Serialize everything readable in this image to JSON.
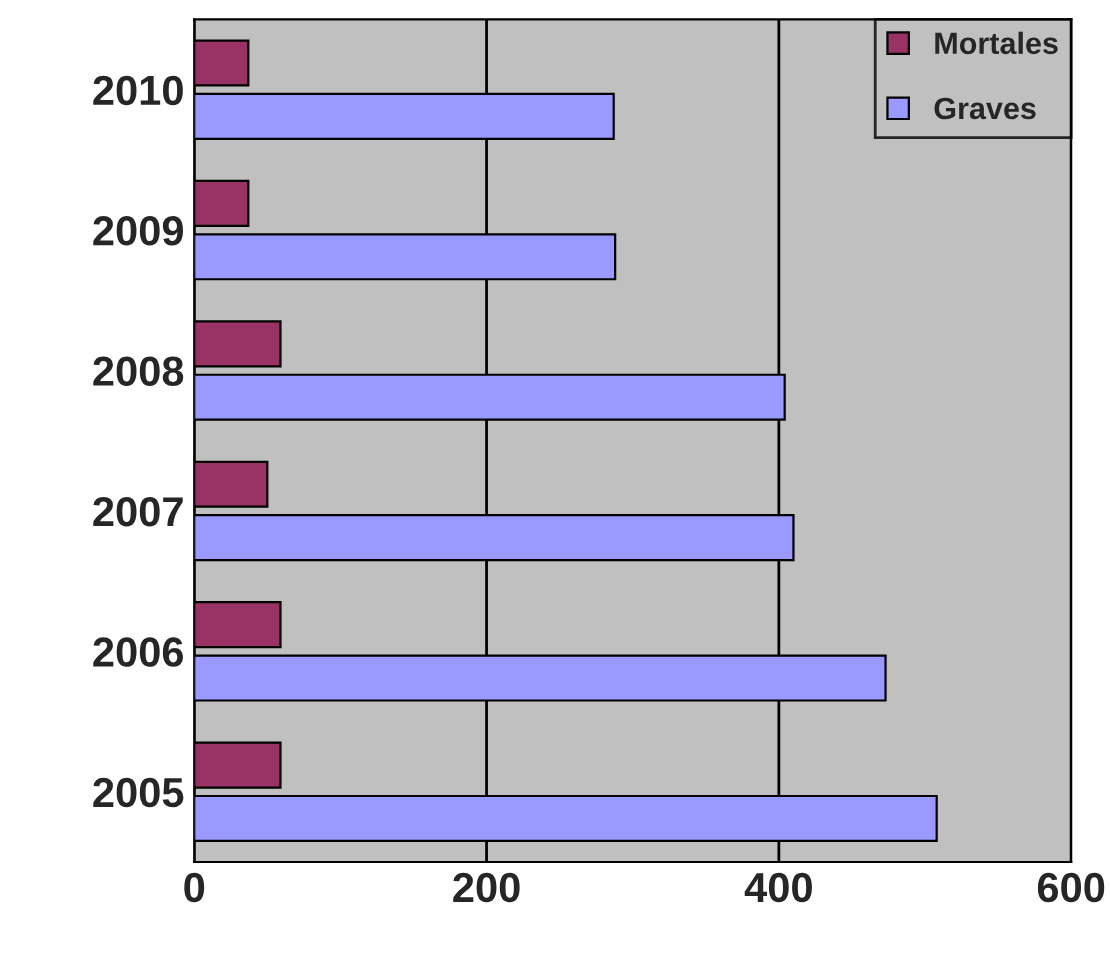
{
  "chart_data": {
    "type": "bar",
    "orientation": "horizontal",
    "categories": [
      "2010",
      "2009",
      "2008",
      "2007",
      "2006",
      "2005"
    ],
    "series": [
      {
        "name": "Mortales",
        "color": "#993366",
        "values": [
          37,
          37,
          59,
          50,
          59,
          59
        ]
      },
      {
        "name": "Graves",
        "color": "#9999ff",
        "values": [
          287,
          288,
          404,
          410,
          473,
          508
        ]
      }
    ],
    "xlim": [
      0,
      600
    ],
    "xticks": [
      0,
      200,
      400,
      600
    ],
    "grid": "x",
    "legend": "top right"
  }
}
